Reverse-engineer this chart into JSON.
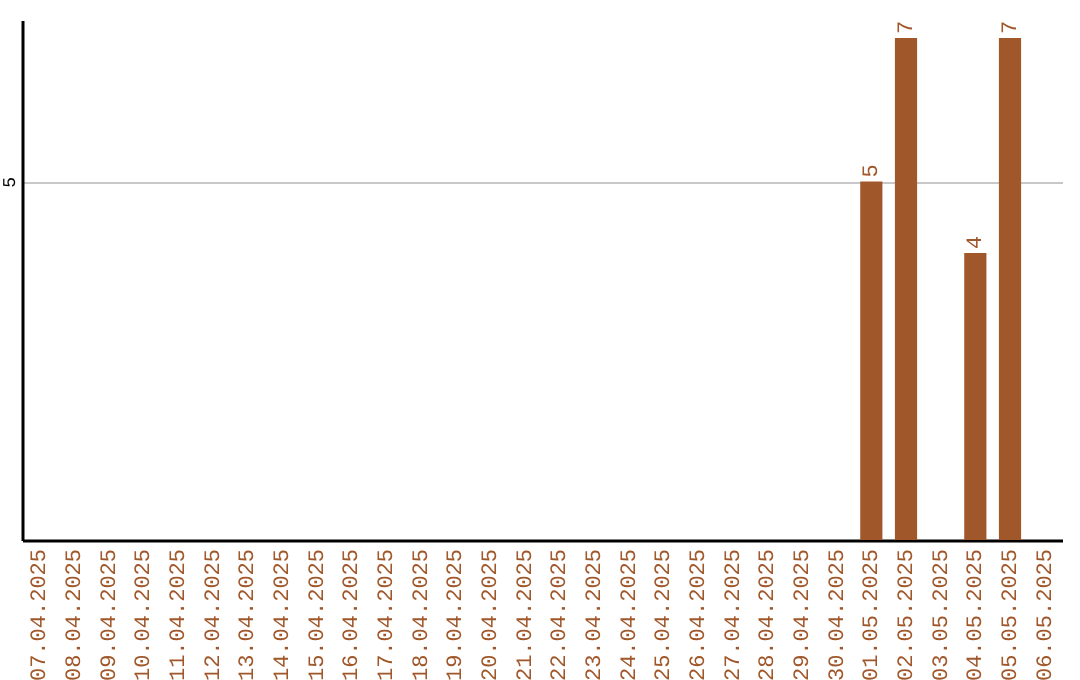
{
  "chart_data": {
    "type": "bar",
    "categories": [
      "07.04.2025",
      "08.04.2025",
      "09.04.2025",
      "10.04.2025",
      "11.04.2025",
      "12.04.2025",
      "13.04.2025",
      "14.04.2025",
      "15.04.2025",
      "16.04.2025",
      "17.04.2025",
      "18.04.2025",
      "19.04.2025",
      "20.04.2025",
      "21.04.2025",
      "22.04.2025",
      "23.04.2025",
      "24.04.2025",
      "25.04.2025",
      "26.04.2025",
      "27.04.2025",
      "28.04.2025",
      "29.04.2025",
      "30.04.2025",
      "01.05.2025",
      "02.05.2025",
      "03.05.2025",
      "04.05.2025",
      "05.05.2025",
      "06.05.2025"
    ],
    "values": [
      null,
      null,
      null,
      null,
      null,
      null,
      null,
      null,
      null,
      null,
      null,
      null,
      null,
      null,
      null,
      null,
      null,
      null,
      null,
      null,
      null,
      null,
      null,
      null,
      5,
      7,
      null,
      4,
      7,
      null
    ],
    "color": "#a0572a",
    "ylim": [
      0,
      7.25
    ],
    "yticks": [
      5
    ],
    "grid": "y",
    "data_labels": true
  }
}
